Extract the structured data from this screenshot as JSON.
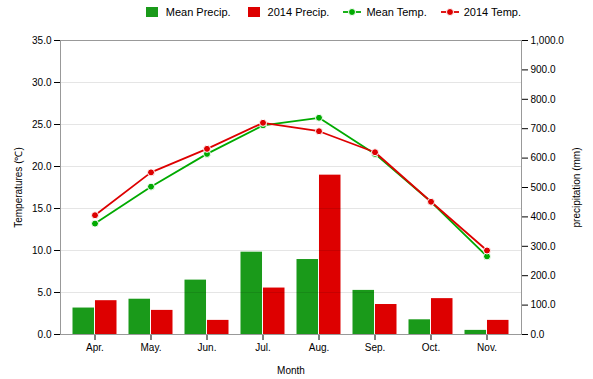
{
  "chart_data": {
    "type": "bar",
    "xlabel": "Month",
    "ylabel": "Temperatures (℃)",
    "y2label": "precipitation (mm)",
    "categories": [
      "Apr.",
      "May.",
      "Jun.",
      "Jul.",
      "Aug.",
      "Sep.",
      "Oct.",
      "Nov."
    ],
    "series": [
      {
        "name": "Mean Precip.",
        "type": "bar",
        "axis": "y2",
        "color": "#1a9a1a",
        "values": [
          90.0,
          120.0,
          185.0,
          280.0,
          255.0,
          150.0,
          50.0,
          14.0
        ]
      },
      {
        "name": "2014 Precip.",
        "type": "bar",
        "axis": "y2",
        "color": "#dd0000",
        "values": [
          115.0,
          82.0,
          48.0,
          158.0,
          542.0,
          102.0,
          122.0,
          48.0
        ]
      },
      {
        "name": "Mean Temp.",
        "type": "line",
        "color": "#00aa00",
        "marker": "o",
        "values": [
          13.2,
          17.6,
          21.5,
          24.9,
          25.8,
          21.5,
          15.8,
          9.3
        ]
      },
      {
        "name": "2014 Temp.",
        "type": "line",
        "color": "#dd0000",
        "marker": "o",
        "values": [
          14.2,
          19.3,
          22.1,
          25.2,
          24.2,
          21.7,
          15.8,
          10.0
        ]
      }
    ],
    "ylim": [
      0.0,
      35.0
    ],
    "yticks": [
      {
        "value": 0,
        "label": "0.0"
      },
      {
        "value": 5,
        "label": "5.0"
      },
      {
        "value": 10,
        "label": "10.0"
      },
      {
        "value": 15,
        "label": "15.0"
      },
      {
        "value": 20,
        "label": "20.0"
      },
      {
        "value": 25,
        "label": "25.0"
      },
      {
        "value": 30,
        "label": "30.0"
      },
      {
        "value": 35,
        "label": "35.0"
      }
    ],
    "y2lim": [
      0.0,
      1000.0
    ],
    "y2ticks": [
      {
        "value": 0,
        "label": "0.0"
      },
      {
        "value": 100,
        "label": "100.0"
      },
      {
        "value": 200,
        "label": "200.0"
      },
      {
        "value": 300,
        "label": "300.0"
      },
      {
        "value": 400,
        "label": "400.0"
      },
      {
        "value": 500,
        "label": "500.0"
      },
      {
        "value": 600,
        "label": "600.0"
      },
      {
        "value": 700,
        "label": "700.0"
      },
      {
        "value": 800,
        "label": "800.0"
      },
      {
        "value": 900,
        "label": "900.0"
      },
      {
        "value": 1000,
        "label": "1,000.0"
      }
    ],
    "grid": true,
    "legend": "upper right"
  }
}
